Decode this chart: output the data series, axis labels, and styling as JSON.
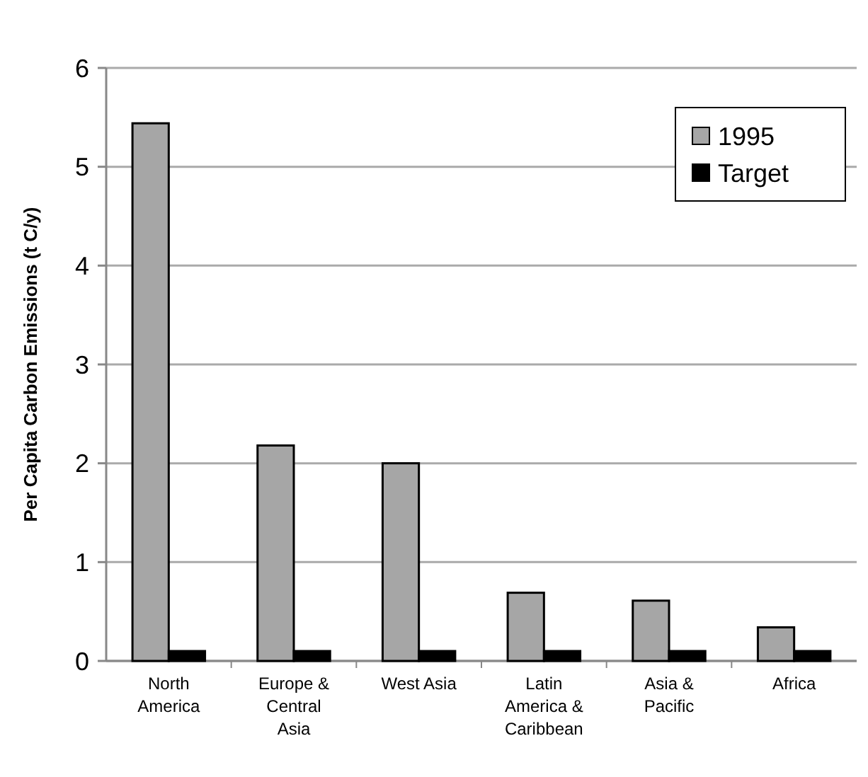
{
  "chart_data": {
    "type": "bar",
    "ylabel": "Per Capita Carbon Emissions (t C/y)",
    "categories": [
      "North America",
      "Europe & Central Asia",
      "West Asia",
      "Latin America & Caribbean",
      "Asia & Pacific",
      "Africa"
    ],
    "series": [
      {
        "name": "1995",
        "color": "#a6a6a6",
        "values": [
          5.44,
          2.18,
          2.0,
          0.69,
          0.61,
          0.34
        ]
      },
      {
        "name": "Target",
        "color": "#000000",
        "values": [
          0.1,
          0.1,
          0.1,
          0.1,
          0.1,
          0.1
        ]
      }
    ],
    "ylim": [
      0,
      6
    ],
    "yticks": [
      0,
      1,
      2,
      3,
      4,
      5,
      6
    ],
    "grid": "y",
    "legend": "top right"
  }
}
